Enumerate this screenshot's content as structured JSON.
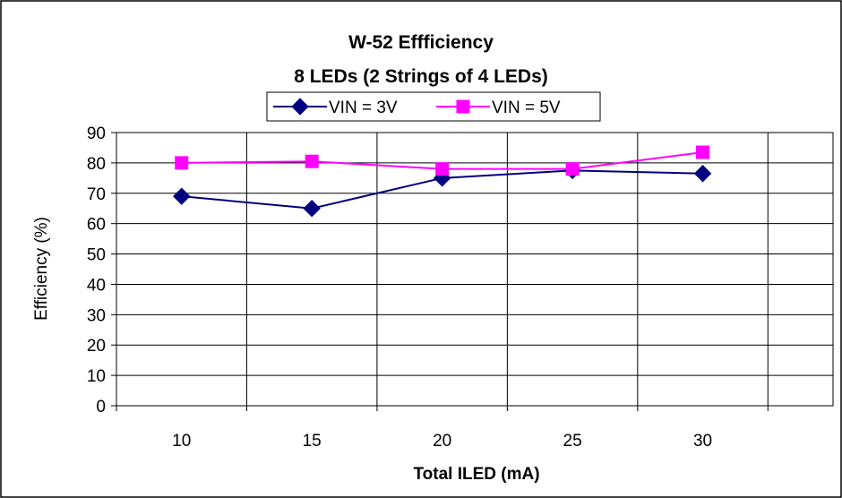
{
  "chart_data": {
    "type": "line",
    "title": "W-52 Effficiency",
    "subtitle": "8 LEDs (2 Strings of 4 LEDs)",
    "xlabel": "Total ILED (mA)",
    "ylabel": "Efficiency (%)",
    "categories": [
      "10",
      "15",
      "20",
      "25",
      "30"
    ],
    "ylim": [
      0,
      90
    ],
    "yticks": [
      "0",
      "10",
      "20",
      "30",
      "40",
      "50",
      "60",
      "70",
      "80",
      "90"
    ],
    "grid": true,
    "legend_position": "top",
    "series": [
      {
        "name": "VIN = 3V",
        "color": "#000080",
        "marker": "diamond",
        "values": [
          69,
          65,
          75,
          77.5,
          76.5
        ]
      },
      {
        "name": "VIN = 5V",
        "color": "#ff00ff",
        "marker": "square",
        "values": [
          80,
          80.5,
          78,
          78,
          83.5
        ]
      }
    ]
  }
}
